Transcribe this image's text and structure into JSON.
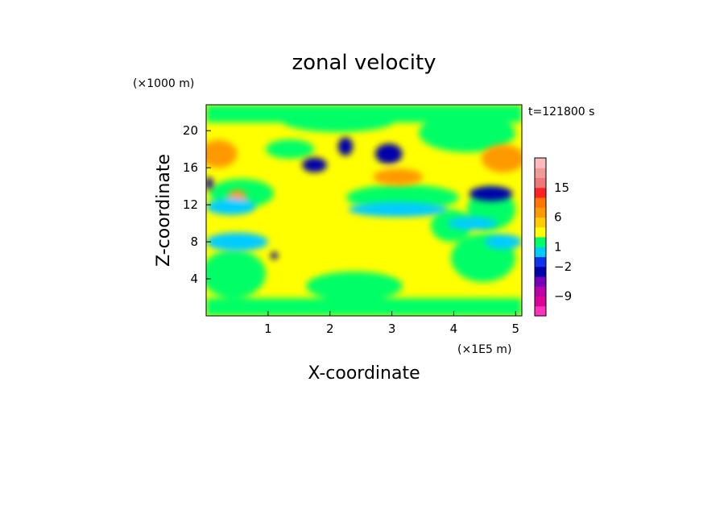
{
  "chart_data": {
    "type": "heatmap",
    "title": "zonal velocity",
    "xlabel": "X-coordinate",
    "ylabel": "Z-coordinate",
    "x_unit": "(×1E5 m)",
    "y_unit": "(×1000 m)",
    "time_label": "t=121800 s",
    "xlim": [
      0,
      5.1
    ],
    "ylim": [
      0,
      22.8
    ],
    "x_ticks": [
      1,
      2,
      3,
      4,
      5
    ],
    "y_ticks": [
      4,
      8,
      12,
      16,
      20
    ],
    "colorbar": {
      "levels": [
        {
          "color": "#ff33bb"
        },
        {
          "color": "#dd0099"
        },
        {
          "color": "#bb00aa"
        },
        {
          "color": "#7700bb"
        },
        {
          "color": "#0000aa"
        },
        {
          "color": "#1133ee"
        },
        {
          "color": "#00ccff"
        },
        {
          "color": "#00ff66"
        },
        {
          "color": "#ffff00"
        },
        {
          "color": "#ffcc00"
        },
        {
          "color": "#ff9900"
        },
        {
          "color": "#ff7700"
        },
        {
          "color": "#ff2222"
        },
        {
          "color": "#ee7777"
        },
        {
          "color": "#f29999"
        },
        {
          "color": "#ffbbbb"
        }
      ],
      "tick_labels": [
        {
          "text": "15",
          "at": 13
        },
        {
          "text": "6",
          "at": 10
        },
        {
          "text": "1",
          "at": 7
        },
        {
          "text": "−2",
          "at": 5
        },
        {
          "text": "−9",
          "at": 2
        }
      ]
    },
    "field_features": [
      {
        "x": 2.95,
        "z": 17.5,
        "rx": 0.22,
        "rz": 1.1,
        "color": "#0000aa"
      },
      {
        "x": 2.25,
        "z": 18.3,
        "rx": 0.12,
        "rz": 1.0,
        "color": "#0000aa"
      },
      {
        "x": 1.75,
        "z": 16.3,
        "rx": 0.2,
        "rz": 0.8,
        "color": "#0000aa"
      },
      {
        "x": 4.6,
        "z": 13.2,
        "rx": 0.35,
        "rz": 0.8,
        "color": "#0000aa"
      },
      {
        "x": 0.05,
        "z": 14.3,
        "rx": 0.06,
        "rz": 0.7,
        "color": "#0000aa"
      },
      {
        "x": 1.1,
        "z": 6.5,
        "rx": 0.06,
        "rz": 0.4,
        "color": "#0000aa"
      },
      {
        "x": 0.2,
        "z": 17.5,
        "rx": 0.3,
        "rz": 1.5,
        "color": "#ff9900"
      },
      {
        "x": 4.8,
        "z": 17.0,
        "rx": 0.35,
        "rz": 1.5,
        "color": "#ff9900"
      },
      {
        "x": 3.1,
        "z": 15.0,
        "rx": 0.4,
        "rz": 0.9,
        "color": "#ff9900"
      },
      {
        "x": 0.5,
        "z": 12.8,
        "rx": 0.15,
        "rz": 0.8,
        "color": "#ff9900"
      },
      {
        "x": 0.4,
        "z": 11.8,
        "rx": 0.4,
        "rz": 0.9,
        "color": "#00ccff"
      },
      {
        "x": 0.5,
        "z": 8.0,
        "rx": 0.5,
        "rz": 1.0,
        "color": "#00ccff"
      },
      {
        "x": 3.1,
        "z": 11.5,
        "rx": 0.8,
        "rz": 0.8,
        "color": "#00ccff"
      },
      {
        "x": 4.8,
        "z": 8.0,
        "rx": 0.3,
        "rz": 0.8,
        "color": "#00ccff"
      },
      {
        "x": 4.3,
        "z": 10.0,
        "rx": 0.4,
        "rz": 0.7,
        "color": "#00ccff"
      }
    ]
  }
}
